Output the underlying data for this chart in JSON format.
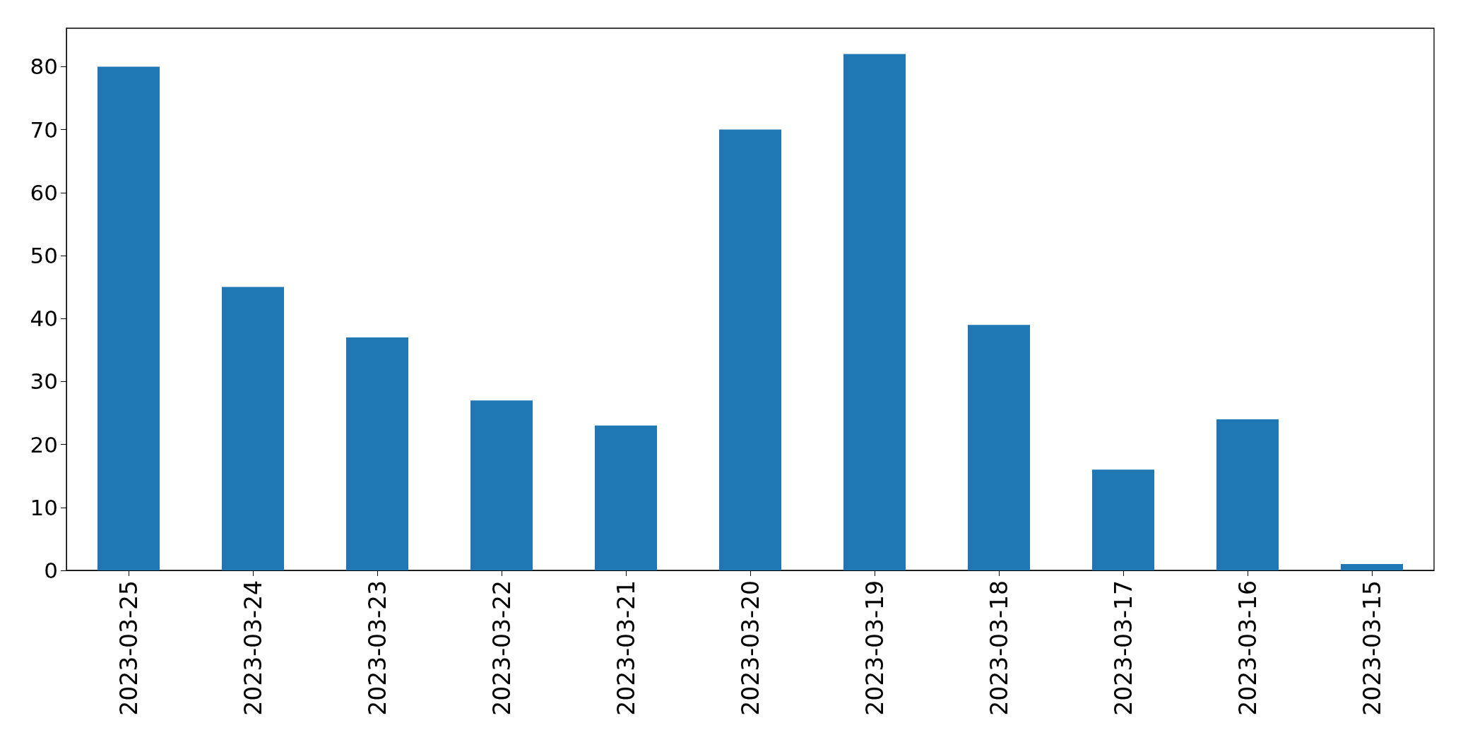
{
  "chart_data": {
    "type": "bar",
    "categories": [
      "2023-03-25",
      "2023-03-24",
      "2023-03-23",
      "2023-03-22",
      "2023-03-21",
      "2023-03-20",
      "2023-03-19",
      "2023-03-18",
      "2023-03-17",
      "2023-03-16",
      "2023-03-15"
    ],
    "values": [
      80,
      45,
      37,
      27,
      23,
      70,
      82,
      39,
      16,
      24,
      1
    ],
    "color": "#1f77b4",
    "ylim": [
      0,
      86.1
    ],
    "yticks": [
      0,
      10,
      20,
      30,
      40,
      50,
      60,
      70,
      80
    ],
    "grid": false
  }
}
